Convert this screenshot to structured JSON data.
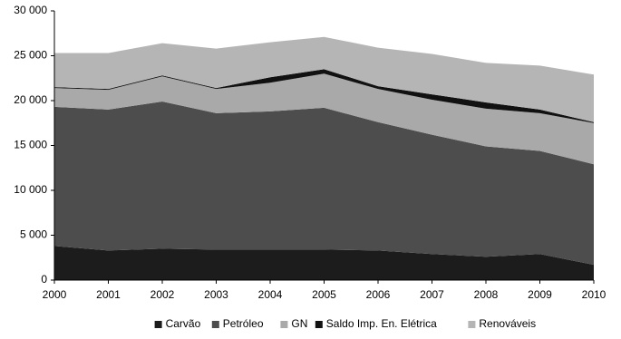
{
  "chart_data": {
    "type": "stacked-area",
    "x": [
      2000,
      2001,
      2002,
      2003,
      2004,
      2005,
      2006,
      2007,
      2008,
      2009,
      2010
    ],
    "xlim": [
      2000,
      2010
    ],
    "xticks": [
      2000,
      2001,
      2002,
      2003,
      2004,
      2005,
      2006,
      2007,
      2008,
      2009,
      2010
    ],
    "ylim": [
      0,
      30000
    ],
    "yticks": [
      0,
      {
        "value": 5000,
        "label": "5 000"
      },
      {
        "value": 10000,
        "label": "10 000"
      },
      {
        "value": 15000,
        "label": "15 000"
      },
      {
        "value": 20000,
        "label": "20 000"
      },
      {
        "value": 25000,
        "label": "25 000"
      },
      {
        "value": 30000,
        "label": "30 000"
      }
    ],
    "grid": false,
    "legend": "bottom",
    "series": [
      {
        "name": "Carvão",
        "color": "#1c1c1c",
        "values": [
          3800,
          3300,
          3500,
          3400,
          3400,
          3400,
          3300,
          2900,
          2600,
          2900,
          1700
        ]
      },
      {
        "name": "Petróleo",
        "color": "#4d4d4d",
        "values": [
          15500,
          15700,
          16400,
          15200,
          15400,
          15800,
          14300,
          13300,
          12300,
          11500,
          11200
        ]
      },
      {
        "name": "GN",
        "color": "#a9a9a9",
        "values": [
          2100,
          2200,
          2800,
          2700,
          3200,
          3800,
          3700,
          3900,
          4200,
          4200,
          4600
        ]
      },
      {
        "name": "Saldo Imp. En. Elétrica",
        "color": "#111111",
        "values": [
          100,
          100,
          100,
          100,
          600,
          500,
          300,
          600,
          700,
          400,
          100
        ]
      },
      {
        "name": "Renováveis",
        "color": "#b5b5b5",
        "values": [
          3800,
          4000,
          3600,
          4400,
          3900,
          3600,
          4300,
          4500,
          4400,
          4900,
          5300
        ]
      }
    ]
  }
}
